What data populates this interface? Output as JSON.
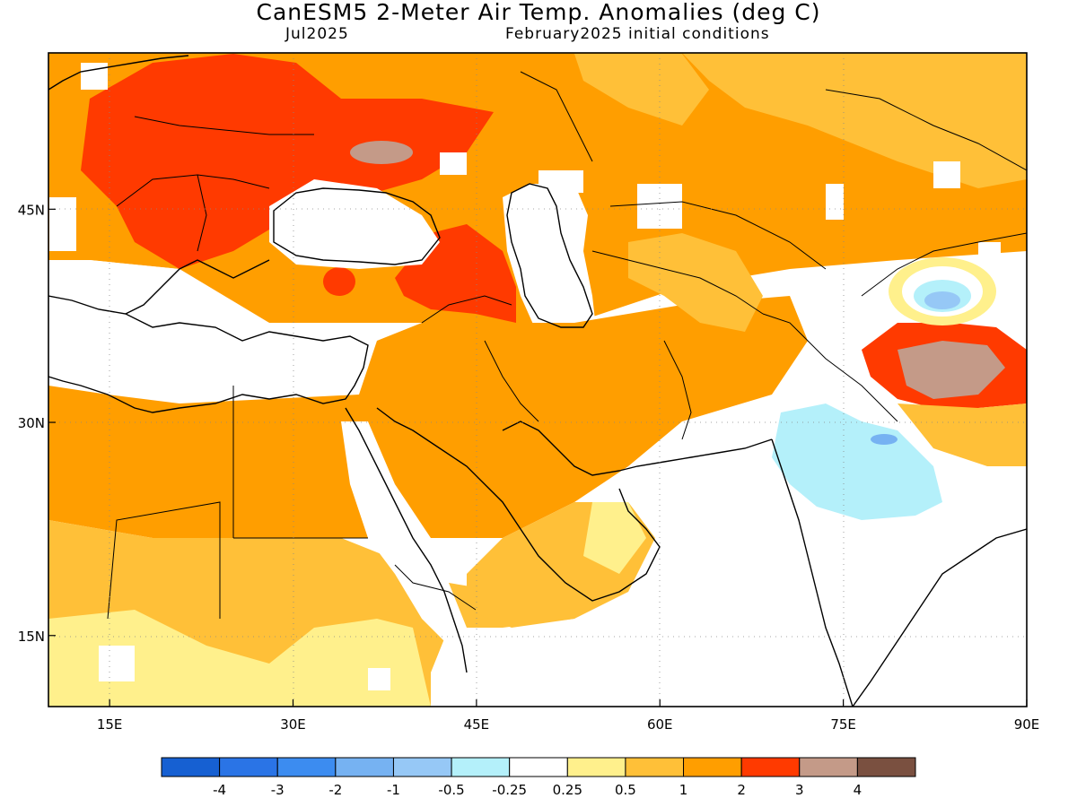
{
  "title": "CanESM5 2-Meter Air Temp. Anomalies (deg C)",
  "valid_month": "Jul2025",
  "init_conditions": "February2025 initial conditions",
  "x_ticks": [
    {
      "lon": 15,
      "label": "15E"
    },
    {
      "lon": 30,
      "label": "30E"
    },
    {
      "lon": 45,
      "label": "45E"
    },
    {
      "lon": 60,
      "label": "60E"
    },
    {
      "lon": 75,
      "label": "75E"
    },
    {
      "lon": 90,
      "label": "90E"
    }
  ],
  "y_ticks": [
    {
      "lat": 45,
      "label": "45N"
    },
    {
      "lat": 30,
      "label": "30N"
    },
    {
      "lat": 15,
      "label": "15N"
    }
  ],
  "map_extent": {
    "lon_min": 10,
    "lon_max": 90,
    "lat_min": 10,
    "lat_max": 56
  },
  "colorbar": {
    "colors": [
      "#1660d2",
      "#2a74e6",
      "#3c8cf0",
      "#76b2f2",
      "#96c8f6",
      "#b4f0fa",
      "#ffffff",
      "#fff08c",
      "#ffc038",
      "#ff9e00",
      "#ff3a00",
      "#c49a88",
      "#7a5040"
    ],
    "labels": [
      "-4",
      "-3",
      "-2",
      "-1",
      "-0.5",
      "-0.25",
      "0.25",
      "0.5",
      "1",
      "2",
      "3",
      "4"
    ]
  }
}
